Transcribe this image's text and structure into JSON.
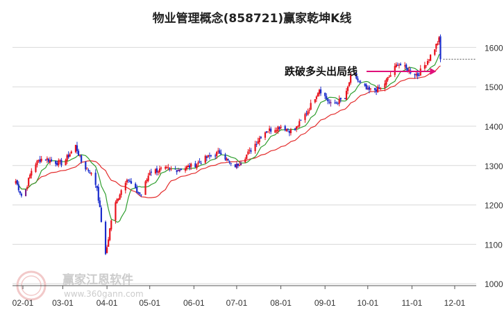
{
  "chart_data": {
    "type": "candlestick",
    "title": "物业管理概念(858721)赢家乾坤K线",
    "x_ticks": [
      "02-01",
      "03-01",
      "04-01",
      "05-01",
      "06-01",
      "07-01",
      "08-01",
      "09-01",
      "10-01",
      "11-01",
      "12-01"
    ],
    "y_ticks": [
      1000,
      1100,
      1200,
      1300,
      1400,
      1500,
      1600
    ],
    "ylim": [
      995,
      1650
    ],
    "grid": true,
    "annotation": "跌破多头出局线",
    "last_close": 1570,
    "anchors": [
      {
        "date": "01-26",
        "close": 1270
      },
      {
        "date": "02-01",
        "close": 1215
      },
      {
        "date": "02-08",
        "close": 1300
      },
      {
        "date": "02-15",
        "close": 1320
      },
      {
        "date": "02-22",
        "close": 1310
      },
      {
        "date": "03-01",
        "close": 1305
      },
      {
        "date": "03-07",
        "close": 1335
      },
      {
        "date": "03-10",
        "close": 1350
      },
      {
        "date": "03-15",
        "close": 1300
      },
      {
        "date": "03-20",
        "close": 1285
      },
      {
        "date": "03-25",
        "close": 1245
      },
      {
        "date": "03-28",
        "close": 1160
      },
      {
        "date": "03-31",
        "close": 1070
      },
      {
        "date": "04-05",
        "close": 1185
      },
      {
        "date": "04-10",
        "close": 1230
      },
      {
        "date": "04-15",
        "close": 1270
      },
      {
        "date": "04-20",
        "close": 1240
      },
      {
        "date": "04-25",
        "close": 1225
      },
      {
        "date": "05-01",
        "close": 1285
      },
      {
        "date": "05-10",
        "close": 1290
      },
      {
        "date": "05-20",
        "close": 1290
      },
      {
        "date": "06-01",
        "close": 1300
      },
      {
        "date": "06-10",
        "close": 1320
      },
      {
        "date": "06-20",
        "close": 1335
      },
      {
        "date": "06-27",
        "close": 1300
      },
      {
        "date": "07-01",
        "close": 1300
      },
      {
        "date": "07-10",
        "close": 1335
      },
      {
        "date": "07-20",
        "close": 1385
      },
      {
        "date": "08-01",
        "close": 1400
      },
      {
        "date": "08-10",
        "close": 1385
      },
      {
        "date": "08-20",
        "close": 1440
      },
      {
        "date": "08-28",
        "close": 1495
      },
      {
        "date": "09-05",
        "close": 1455
      },
      {
        "date": "09-15",
        "close": 1470
      },
      {
        "date": "09-20",
        "close": 1540
      },
      {
        "date": "09-25",
        "close": 1510
      },
      {
        "date": "10-01",
        "close": 1490
      },
      {
        "date": "10-10",
        "close": 1495
      },
      {
        "date": "10-18",
        "close": 1535
      },
      {
        "date": "10-22",
        "close": 1560
      },
      {
        "date": "10-28",
        "close": 1545
      },
      {
        "date": "11-05",
        "close": 1530
      },
      {
        "date": "11-10",
        "close": 1555
      },
      {
        "date": "11-15",
        "close": 1585
      },
      {
        "date": "11-20",
        "close": 1620
      },
      {
        "date": "11-22",
        "close": 1575
      }
    ],
    "colors": {
      "up": "#e8121c",
      "down": "#1a2ccc",
      "purple": "#7a1f8c",
      "ma_short": "#2e9e2e",
      "ma_long": "#e32b2b",
      "arrow": "#e0107a",
      "grid": "#d8d8d8",
      "axis_text": "#333333"
    }
  },
  "watermark": {
    "name": "赢家江恩软件",
    "url": "www.360gann.com",
    "seal": "江恩"
  }
}
